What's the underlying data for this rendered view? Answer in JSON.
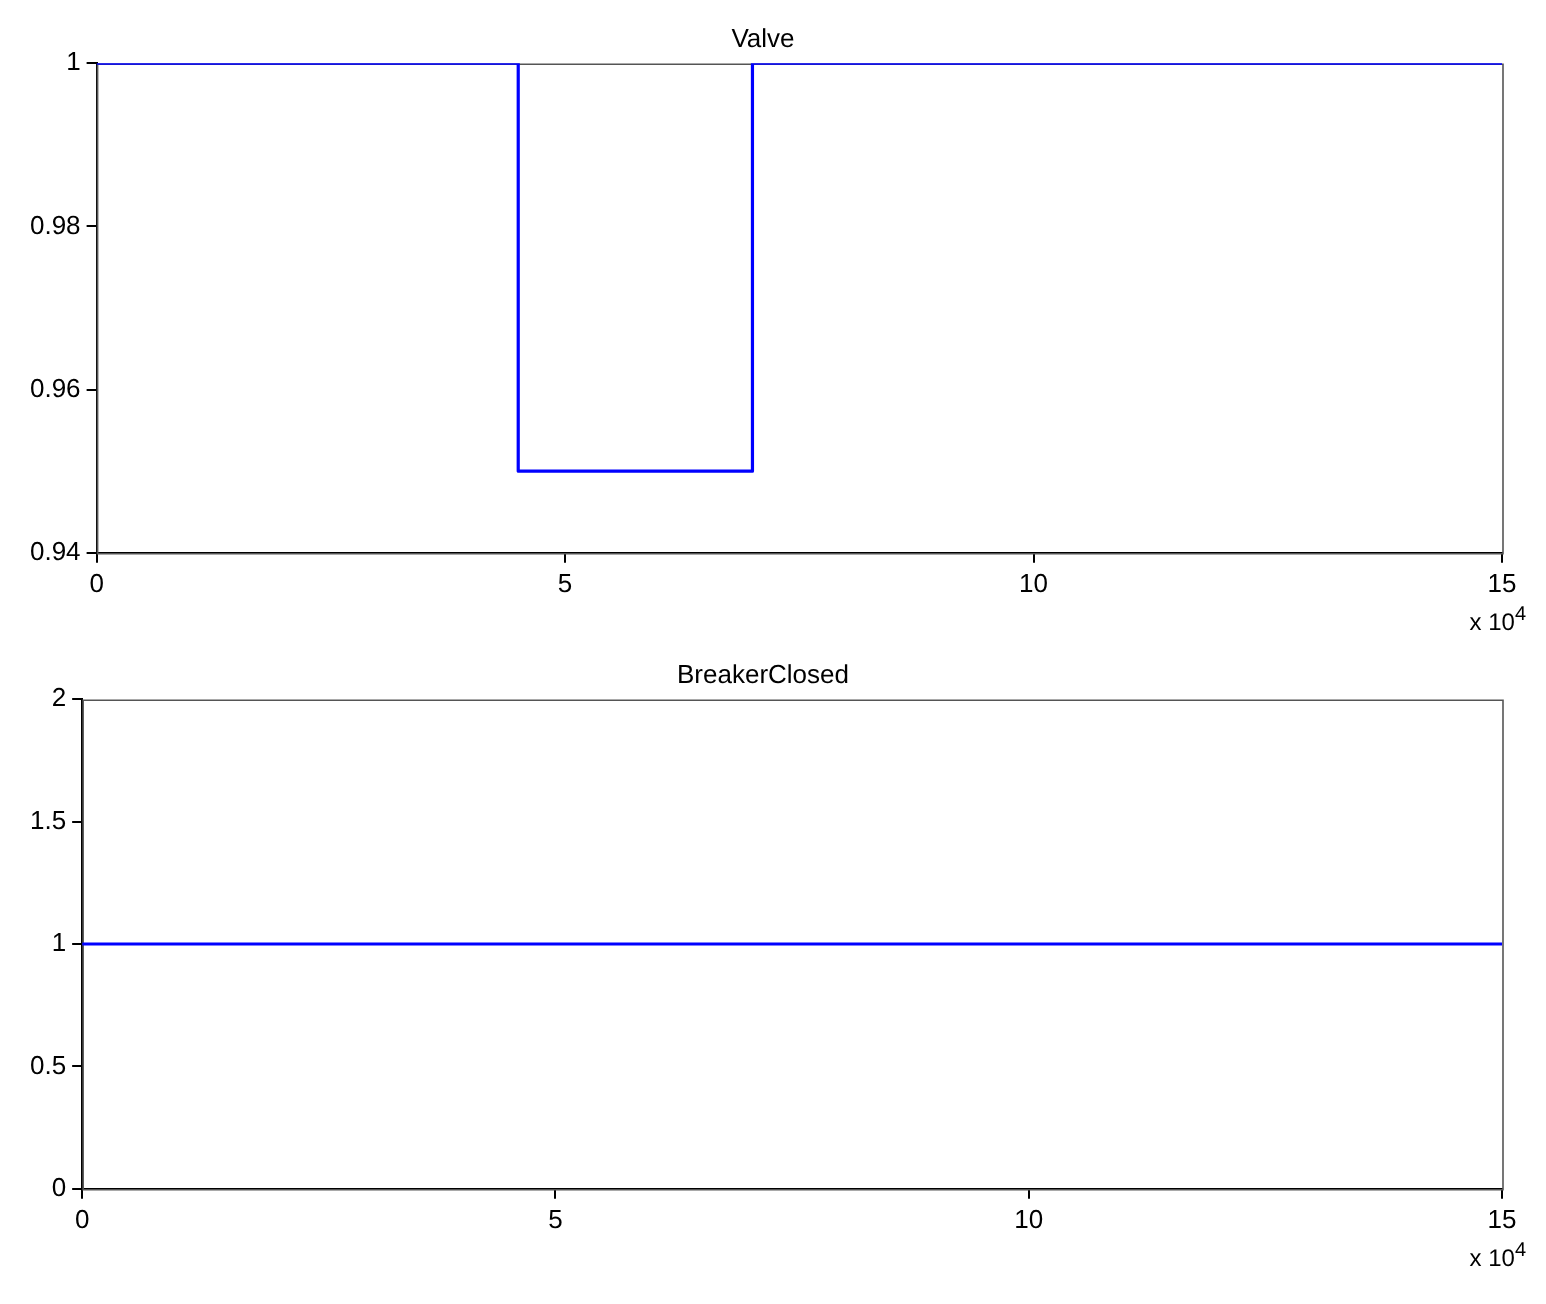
{
  "chart_data": [
    {
      "type": "step",
      "title": "Valve",
      "x": [
        0,
        4.5,
        7,
        15
      ],
      "values": [
        1,
        0.95,
        1,
        1
      ],
      "color": "#0000ff",
      "xlim": [
        0,
        15
      ],
      "xticks": [
        0,
        5,
        10,
        15
      ],
      "ylim": [
        0.94,
        1
      ],
      "yticks": [
        0.94,
        0.96,
        0.98,
        1
      ],
      "grid": false,
      "annotations": [
        "x 10$^{4}$"
      ]
    },
    {
      "type": "line",
      "title": "BreakerClosed",
      "x": [
        0,
        15
      ],
      "values": [
        1,
        1
      ],
      "color": "#0000ff",
      "xlim": [
        0,
        15
      ],
      "xticks": [
        0,
        5,
        10,
        15
      ],
      "ylim": [
        0,
        2
      ],
      "yticks": [
        0,
        0.5,
        1,
        1.5,
        2
      ],
      "grid": false,
      "annotations": [
        "x 10$^{4}$"
      ]
    }
  ]
}
